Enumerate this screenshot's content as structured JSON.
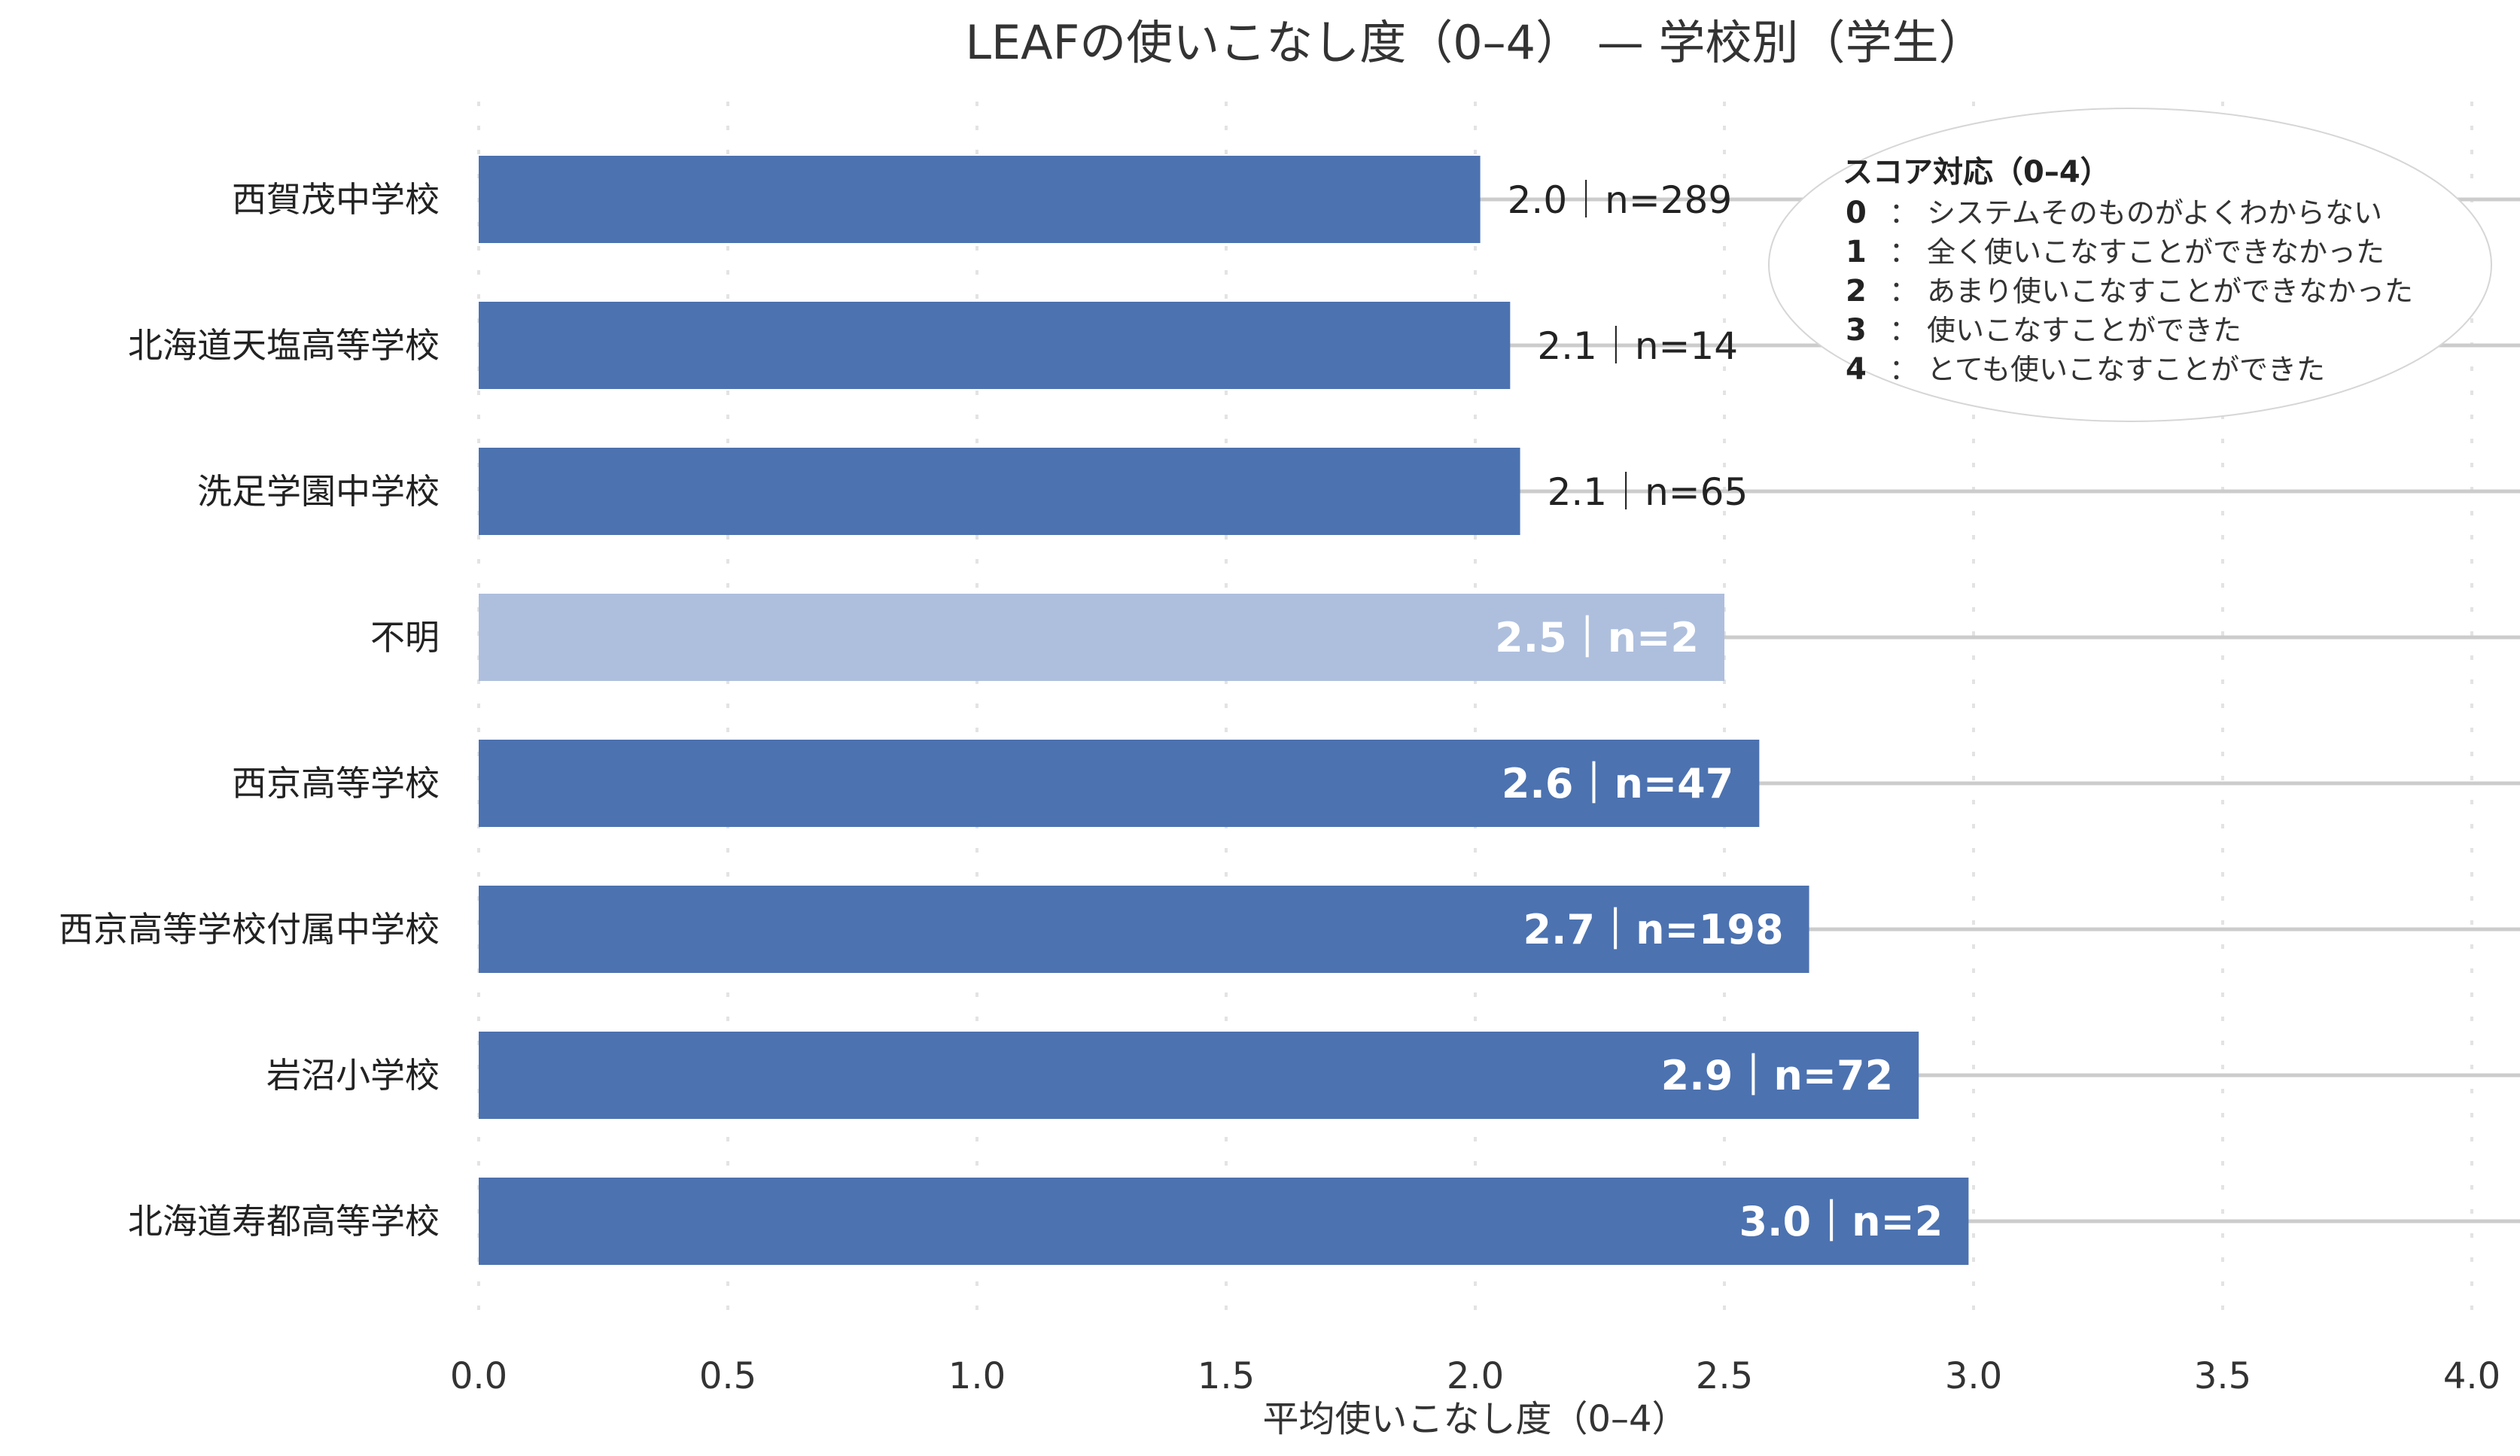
{
  "chart_data": {
    "type": "bar",
    "orientation": "horizontal",
    "title": "LEAFの使いこなし度（0–4） — 学校別（学生）",
    "xlabel": "平均使いこなし度（0–4）",
    "ylabel": "",
    "xlim": [
      0,
      4
    ],
    "x_ticks": [
      "0.0",
      "0.5",
      "1.0",
      "1.5",
      "2.0",
      "2.5",
      "3.0",
      "3.5",
      "4.0"
    ],
    "x_tick_values": [
      0,
      0.5,
      1.0,
      1.5,
      2.0,
      2.5,
      3.0,
      3.5,
      4.0
    ],
    "grid": "vertical dotted",
    "bar_color": "#4c72b0",
    "bar_color_highlight": "#aebfdd",
    "categories": [
      "西賀茂中学校",
      "北海道天塩高等学校",
      "洗足学園中学校",
      "不明",
      "西京高等学校",
      "西京高等学校付属中学校",
      "岩沼小学校",
      "北海道寿都高等学校"
    ],
    "values": [
      2.01,
      2.07,
      2.09,
      2.5,
      2.57,
      2.67,
      2.89,
      2.99
    ],
    "n": [
      289,
      14,
      65,
      2,
      47,
      198,
      72,
      2
    ],
    "data_labels": [
      "2.0｜n=289",
      "2.1｜n=14",
      "2.1｜n=65",
      "2.5｜n=2",
      "2.6｜n=47",
      "2.7｜n=198",
      "2.9｜n=72",
      "3.0｜n=2"
    ],
    "label_inside": [
      false,
      false,
      false,
      true,
      true,
      true,
      true,
      true
    ],
    "highlight": [
      false,
      false,
      false,
      true,
      false,
      false,
      false,
      false
    ],
    "legend": {
      "position": "top-right",
      "title": "スコア対応（0–4）",
      "items": [
        {
          "key": "0",
          "text": "システムそのものがよくわからない"
        },
        {
          "key": "1",
          "text": "全く使いこなすことができなかった"
        },
        {
          "key": "2",
          "text": "あまり使いこなすことができなかった"
        },
        {
          "key": "3",
          "text": "使いこなすことができた"
        },
        {
          "key": "4",
          "text": "とても使いこなすことができた"
        }
      ]
    }
  }
}
